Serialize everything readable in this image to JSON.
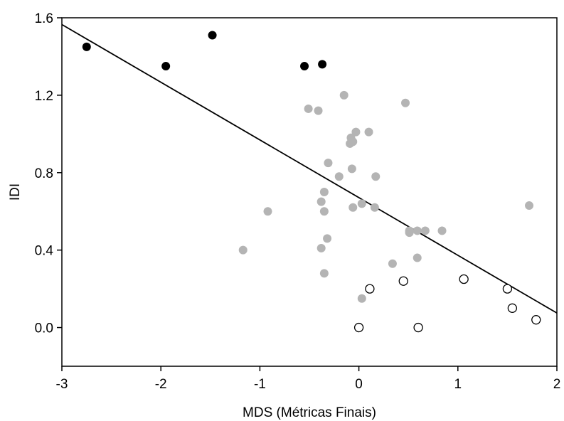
{
  "chart_data": {
    "type": "scatter",
    "title": "",
    "xlabel": "MDS (Métricas Finais)",
    "ylabel": "IDI",
    "xlim": [
      -3,
      2
    ],
    "ylim": [
      -0.2,
      1.6
    ],
    "x_ticks": [
      -3,
      -2,
      -1,
      0,
      1,
      2
    ],
    "x_tick_labels": [
      "-3",
      "-2",
      "-1",
      "0",
      "1",
      "2"
    ],
    "y_ticks": [
      0.0,
      0.4,
      0.8,
      1.2,
      1.6
    ],
    "y_tick_labels": [
      "0.0",
      "0.4",
      "0.8",
      "1.2",
      "1.6"
    ],
    "grid": false,
    "legend": "none",
    "series": [
      {
        "marker": "filled-black",
        "color": "#000000",
        "points": [
          [
            -2.75,
            1.45
          ],
          [
            -1.95,
            1.35
          ],
          [
            -1.48,
            1.51
          ],
          [
            -0.55,
            1.35
          ],
          [
            -0.37,
            1.36
          ]
        ]
      },
      {
        "marker": "filled-gray",
        "color": "#b4b4b4",
        "points": [
          [
            -0.15,
            1.2
          ],
          [
            0.47,
            1.16
          ],
          [
            -0.51,
            1.13
          ],
          [
            -0.41,
            1.12
          ],
          [
            -0.03,
            1.01
          ],
          [
            0.1,
            1.01
          ],
          [
            -0.08,
            0.98
          ],
          [
            -0.06,
            0.96
          ],
          [
            -0.09,
            0.95
          ],
          [
            -0.31,
            0.85
          ],
          [
            -0.07,
            0.82
          ],
          [
            -0.2,
            0.78
          ],
          [
            0.17,
            0.78
          ],
          [
            -0.35,
            0.7
          ],
          [
            -0.38,
            0.65
          ],
          [
            0.03,
            0.64
          ],
          [
            -0.06,
            0.62
          ],
          [
            0.16,
            0.62
          ],
          [
            1.72,
            0.63
          ],
          [
            -0.92,
            0.6
          ],
          [
            -0.35,
            0.6
          ],
          [
            0.51,
            0.5
          ],
          [
            0.59,
            0.5
          ],
          [
            0.67,
            0.5
          ],
          [
            0.84,
            0.5
          ],
          [
            0.51,
            0.49
          ],
          [
            -0.32,
            0.46
          ],
          [
            -0.38,
            0.41
          ],
          [
            -1.17,
            0.4
          ],
          [
            0.59,
            0.36
          ],
          [
            0.34,
            0.33
          ],
          [
            -0.35,
            0.28
          ],
          [
            0.03,
            0.15
          ]
        ]
      },
      {
        "marker": "open-black",
        "color": "#000000",
        "points": [
          [
            0.11,
            0.2
          ],
          [
            0.45,
            0.24
          ],
          [
            1.06,
            0.25
          ],
          [
            1.5,
            0.2
          ],
          [
            1.55,
            0.1
          ],
          [
            1.79,
            0.04
          ],
          [
            0.0,
            0.0
          ],
          [
            0.6,
            0.0
          ]
        ]
      }
    ],
    "regression_line": {
      "x": [
        -3,
        2
      ],
      "y": [
        1.565,
        0.075
      ],
      "color": "#000000"
    }
  }
}
